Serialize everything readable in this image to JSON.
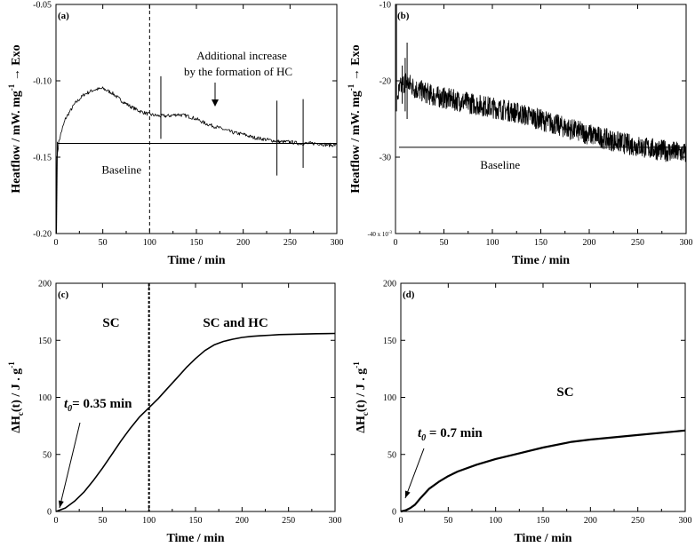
{
  "chart_data": [
    {
      "panel": "(a)",
      "type": "line",
      "xlabel": "Time / min",
      "ylabel": "Heatflow / mW. mg-1 → Exo",
      "ylabel_parts": {
        "main": "Heatflow / mW. mg",
        "sup": "-1",
        "arrow": "→",
        "tail": "Exo"
      },
      "xlim": [
        0,
        300
      ],
      "ylim": [
        -0.2,
        -0.05
      ],
      "xticks": [
        0,
        50,
        100,
        150,
        200,
        250,
        300
      ],
      "xtick_labels": [
        "0",
        "50",
        "100",
        "150",
        "200",
        "250",
        "300"
      ],
      "yticks": [
        -0.2,
        -0.15,
        -0.1,
        -0.05
      ],
      "ytick_labels": [
        "-0.20",
        "-0.15",
        "-0.10",
        "-0.05"
      ],
      "baseline": -0.141,
      "baseline_label": "Baseline",
      "vline_x": 100,
      "annotation": [
        "Additional increase",
        "by the formation of HC"
      ],
      "series": [
        {
          "name": "heatflow",
          "x": [
            0,
            1,
            3,
            5,
            10,
            20,
            30,
            40,
            50,
            60,
            70,
            80,
            90,
            100,
            110,
            120,
            130,
            140,
            150,
            160,
            170,
            180,
            190,
            200,
            210,
            220,
            230,
            240,
            250,
            260,
            270,
            280,
            290,
            300
          ],
          "y": [
            -0.2,
            -0.15,
            -0.14,
            -0.135,
            -0.125,
            -0.115,
            -0.109,
            -0.106,
            -0.105,
            -0.108,
            -0.113,
            -0.117,
            -0.12,
            -0.122,
            -0.123,
            -0.123,
            -0.122,
            -0.123,
            -0.125,
            -0.128,
            -0.13,
            -0.132,
            -0.134,
            -0.135,
            -0.137,
            -0.138,
            -0.139,
            -0.14,
            -0.14,
            -0.141,
            -0.141,
            -0.141,
            -0.142,
            -0.142
          ]
        }
      ],
      "spikes": [
        {
          "x": 112,
          "ymin": -0.138,
          "ymax": -0.097
        },
        {
          "x": 236,
          "ymin": -0.162,
          "ymax": -0.113
        },
        {
          "x": 264,
          "ymin": -0.157,
          "ymax": -0.112
        }
      ]
    },
    {
      "panel": "(b)",
      "type": "line",
      "xlabel": "Time / min",
      "ylabel": "Heatflow / mW. mg-1 → Exo",
      "ylabel_parts": {
        "main": "Heatflow / mW. mg",
        "sup": "-1",
        "arrow": "→",
        "tail": "Exo"
      },
      "xlim": [
        0,
        300
      ],
      "ylim": [
        -40,
        -10
      ],
      "xticks": [
        0,
        50,
        100,
        150,
        200,
        250,
        300
      ],
      "xtick_labels": [
        "0",
        "50",
        "100",
        "150",
        "200",
        "250",
        "300"
      ],
      "yticks": [
        -30,
        -20,
        -10
      ],
      "ytick_labels": [
        "-30",
        "-20",
        "-10"
      ],
      "ybottom_label": "-40 x 10",
      "ybottom_exp": "-3",
      "baseline": -28.7,
      "baseline_label": "Baseline",
      "series": [
        {
          "name": "heatflow",
          "x": [
            2,
            5,
            10,
            15,
            20,
            30,
            40,
            60,
            80,
            100,
            120,
            140,
            160,
            180,
            200,
            220,
            240,
            260,
            280,
            300
          ],
          "y": [
            -22,
            -21,
            -20,
            -20.5,
            -21,
            -21.5,
            -22,
            -22.5,
            -23,
            -23.5,
            -24,
            -24.7,
            -25.5,
            -26.3,
            -27,
            -27.7,
            -28.3,
            -28.8,
            -29.2,
            -29.5
          ]
        }
      ],
      "spikes": [
        {
          "x": 12,
          "ymin": -25,
          "ymax": -15
        },
        {
          "x": 10,
          "ymin": -24,
          "ymax": -17
        },
        {
          "x": 7,
          "ymin": -23,
          "ymax": -18
        }
      ]
    },
    {
      "panel": "(c)",
      "type": "line",
      "xlabel": "Time / min",
      "ylabel": "ΔHc(t) / J . g-1",
      "ylabel_parts": {
        "main1": "ΔH",
        "sub": "c",
        "main2": "(t) / J . g",
        "sup": "-1"
      },
      "xlim": [
        0,
        300
      ],
      "ylim": [
        0,
        200
      ],
      "xticks": [
        0,
        50,
        100,
        150,
        200,
        250,
        300
      ],
      "xtick_labels": [
        "0",
        "50",
        "100",
        "150",
        "200",
        "250",
        "300"
      ],
      "yticks": [
        0,
        50,
        100,
        150,
        200
      ],
      "ytick_labels": [
        "0",
        "50",
        "100",
        "150",
        "200"
      ],
      "vline_x": 100,
      "region_labels": [
        "SC",
        "SC and HC"
      ],
      "t0_label": "t0= 0.35 min",
      "t0_parts": {
        "t": "t",
        "sub": "0",
        "rest": "= 0.35 min"
      },
      "series": [
        {
          "name": "ΔHc",
          "x": [
            0,
            10,
            20,
            30,
            40,
            50,
            60,
            70,
            80,
            90,
            100,
            110,
            120,
            130,
            140,
            150,
            160,
            170,
            180,
            190,
            200,
            210,
            220,
            230,
            240,
            250,
            260,
            270,
            280,
            290,
            300
          ],
          "y": [
            0,
            3,
            9,
            17,
            27,
            38,
            50,
            62,
            73,
            83,
            91,
            99,
            108,
            117,
            126,
            134,
            141,
            146,
            149,
            151,
            152.5,
            153.5,
            154,
            154.5,
            155,
            155.2,
            155.4,
            155.6,
            155.8,
            155.9,
            156
          ]
        }
      ]
    },
    {
      "panel": "(d)",
      "type": "line",
      "xlabel": "Time / min",
      "ylabel": "ΔHc(t) / J . g-1",
      "ylabel_parts": {
        "main1": "ΔH",
        "sub": "c",
        "main2": "(t) / J . g",
        "sup": "-1"
      },
      "xlim": [
        0,
        300
      ],
      "ylim": [
        0,
        200
      ],
      "xticks": [
        0,
        50,
        100,
        150,
        200,
        250,
        300
      ],
      "xtick_labels": [
        "0",
        "50",
        "100",
        "150",
        "200",
        "250",
        "300"
      ],
      "yticks": [
        0,
        50,
        100,
        150,
        200
      ],
      "ytick_labels": [
        "0",
        "50",
        "100",
        "150",
        "200"
      ],
      "region_labels": [
        "SC"
      ],
      "t0_label": "t0 = 0.7 min",
      "t0_parts": {
        "t": "t",
        "sub": "0",
        "rest": " = 0.7 min"
      },
      "series": [
        {
          "name": "ΔHc",
          "x": [
            0,
            5,
            10,
            15,
            20,
            30,
            40,
            50,
            60,
            80,
            100,
            120,
            150,
            180,
            200,
            250,
            300
          ],
          "y": [
            0,
            1,
            3,
            6,
            11,
            20,
            26,
            31,
            35,
            41,
            46,
            50,
            56,
            61,
            63,
            67,
            71
          ]
        }
      ]
    }
  ]
}
